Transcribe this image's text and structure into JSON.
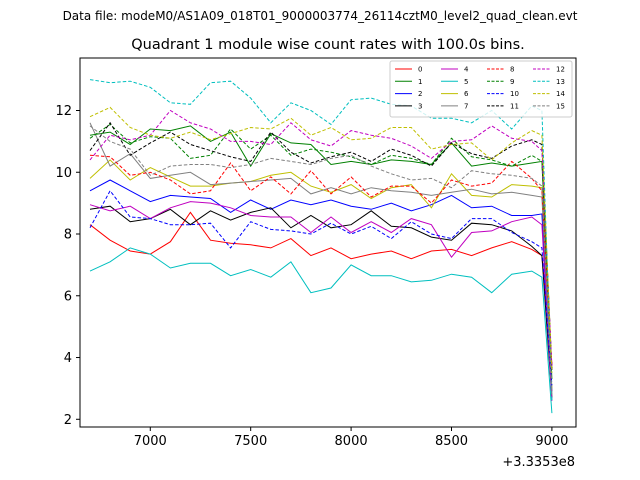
{
  "suptitle": "Data file: modeM0/AS1A09_018T01_9000003774_26114cztM0_level2_quad_clean.evt",
  "chart_data": {
    "type": "line",
    "title": "Quadrant 1 module wise count rates with 100.0s bins.",
    "xlabel": "",
    "ylabel": "",
    "x_offset_text": "+3.3353e8",
    "xlim": [
      6650,
      9120
    ],
    "ylim": [
      1.75,
      13.7
    ],
    "xticks": [
      7000,
      7500,
      8000,
      8500,
      9000
    ],
    "yticks": [
      2,
      4,
      6,
      8,
      10,
      12
    ],
    "legend_position": "top-right",
    "x": [
      6700,
      6800,
      6900,
      7000,
      7100,
      7200,
      7300,
      7400,
      7500,
      7600,
      7700,
      7800,
      7900,
      8000,
      8100,
      8200,
      8300,
      8400,
      8500,
      8600,
      8700,
      8800,
      8900,
      8950,
      9000
    ],
    "series": [
      {
        "name": "0",
        "color": "#ff0000",
        "dash": "solid",
        "values": [
          8.3,
          7.8,
          7.45,
          7.35,
          7.75,
          8.7,
          7.8,
          7.7,
          7.65,
          7.55,
          7.85,
          7.3,
          7.55,
          7.2,
          7.35,
          7.45,
          7.2,
          7.45,
          7.5,
          7.3,
          7.55,
          7.75,
          7.5,
          7.3,
          3.8
        ]
      },
      {
        "name": "1",
        "color": "#008000",
        "dash": "solid",
        "values": [
          11.2,
          11.3,
          10.9,
          11.4,
          11.35,
          11.5,
          11.0,
          11.3,
          10.2,
          11.25,
          10.95,
          10.9,
          10.25,
          10.35,
          10.25,
          10.4,
          10.35,
          10.25,
          10.95,
          10.2,
          10.3,
          10.2,
          10.3,
          10.35,
          3.3
        ]
      },
      {
        "name": "2",
        "color": "#0000ff",
        "dash": "solid",
        "values": [
          9.4,
          9.75,
          9.4,
          9.05,
          9.25,
          9.2,
          9.15,
          8.7,
          9.1,
          8.8,
          9.1,
          8.95,
          9.1,
          8.9,
          8.8,
          9.0,
          8.75,
          8.95,
          9.25,
          8.85,
          8.9,
          8.6,
          8.6,
          8.65,
          2.9
        ]
      },
      {
        "name": "3",
        "color": "#000000",
        "dash": "solid",
        "values": [
          8.8,
          8.9,
          8.4,
          8.5,
          8.8,
          8.3,
          8.75,
          8.45,
          8.7,
          8.85,
          8.2,
          8.6,
          8.2,
          8.3,
          8.75,
          8.25,
          8.2,
          7.9,
          7.8,
          8.35,
          8.3,
          8.1,
          7.6,
          7.3,
          2.7
        ]
      },
      {
        "name": "4",
        "color": "#c000c0",
        "dash": "solid",
        "values": [
          8.95,
          8.75,
          8.9,
          8.5,
          8.85,
          9.05,
          9.0,
          8.85,
          8.6,
          8.55,
          8.55,
          8.05,
          8.55,
          8.05,
          8.4,
          8.05,
          8.5,
          8.3,
          7.25,
          8.05,
          8.1,
          8.4,
          8.55,
          8.3,
          2.6
        ]
      },
      {
        "name": "5",
        "color": "#00bfbf",
        "dash": "solid",
        "values": [
          6.8,
          7.1,
          7.55,
          7.35,
          6.9,
          7.05,
          7.05,
          6.65,
          6.85,
          6.6,
          7.1,
          6.1,
          6.25,
          7.0,
          6.65,
          6.65,
          6.45,
          6.5,
          6.7,
          6.6,
          6.1,
          6.7,
          6.8,
          6.6,
          2.2
        ]
      },
      {
        "name": "6",
        "color": "#bfbf00",
        "dash": "solid",
        "values": [
          9.8,
          10.4,
          9.75,
          10.15,
          9.85,
          9.55,
          9.55,
          9.65,
          9.7,
          9.9,
          10.0,
          9.55,
          9.35,
          9.6,
          9.15,
          9.5,
          9.6,
          8.85,
          9.95,
          9.25,
          9.2,
          9.6,
          9.55,
          9.5,
          3.0
        ]
      },
      {
        "name": "7",
        "color": "#808080",
        "dash": "solid",
        "values": [
          11.6,
          10.2,
          10.6,
          9.8,
          9.9,
          10.0,
          9.6,
          9.65,
          9.7,
          9.75,
          9.8,
          9.3,
          9.5,
          9.3,
          9.5,
          9.4,
          9.35,
          9.25,
          9.35,
          9.45,
          9.3,
          9.35,
          9.25,
          9.2,
          2.9
        ]
      },
      {
        "name": "8",
        "color": "#ff0000",
        "dash": "dashed",
        "values": [
          10.55,
          10.5,
          9.9,
          10.0,
          9.75,
          9.3,
          9.4,
          10.3,
          9.4,
          9.85,
          9.3,
          10.05,
          9.3,
          9.85,
          9.2,
          9.55,
          9.55,
          9.0,
          9.75,
          9.55,
          9.65,
          10.35,
          9.8,
          9.4,
          3.7
        ]
      },
      {
        "name": "9",
        "color": "#008000",
        "dash": "dashed",
        "values": [
          11.1,
          11.55,
          10.95,
          11.15,
          11.1,
          10.45,
          10.55,
          11.4,
          10.75,
          11.2,
          10.55,
          10.75,
          10.65,
          10.5,
          10.25,
          10.55,
          10.45,
          10.25,
          11.1,
          10.5,
          10.4,
          10.2,
          10.55,
          10.35,
          3.6
        ]
      },
      {
        "name": "10",
        "color": "#0000ff",
        "dash": "dashed",
        "values": [
          8.2,
          9.4,
          8.55,
          8.5,
          8.3,
          8.3,
          8.35,
          7.55,
          8.4,
          8.15,
          8.1,
          8.0,
          8.35,
          8.0,
          8.25,
          7.85,
          8.4,
          8.0,
          7.85,
          8.5,
          8.5,
          8.05,
          7.75,
          7.55,
          3.1
        ]
      },
      {
        "name": "11",
        "color": "#000000",
        "dash": "dashed",
        "values": [
          10.7,
          11.6,
          10.55,
          10.95,
          11.3,
          10.9,
          10.7,
          10.5,
          10.35,
          11.3,
          10.65,
          10.3,
          10.5,
          10.65,
          10.35,
          10.75,
          10.55,
          10.2,
          10.95,
          10.6,
          10.45,
          10.85,
          11.05,
          10.9,
          3.6
        ]
      },
      {
        "name": "12",
        "color": "#c000c0",
        "dash": "dashed",
        "values": [
          10.4,
          11.2,
          11.05,
          11.2,
          12.0,
          11.6,
          11.4,
          11.0,
          11.0,
          10.9,
          11.6,
          11.05,
          10.85,
          11.35,
          11.2,
          11.1,
          10.85,
          10.45,
          11.0,
          11.05,
          11.5,
          11.1,
          11.0,
          10.7,
          3.7
        ]
      },
      {
        "name": "13",
        "color": "#00bfbf",
        "dash": "dashed",
        "values": [
          13.0,
          12.9,
          12.95,
          12.75,
          12.25,
          12.2,
          12.9,
          12.95,
          12.4,
          11.6,
          12.25,
          12.0,
          11.55,
          12.35,
          12.4,
          12.2,
          12.15,
          11.75,
          11.75,
          11.6,
          12.0,
          11.4,
          12.15,
          12.0,
          2.6
        ]
      },
      {
        "name": "14",
        "color": "#bfbf00",
        "dash": "dashed",
        "values": [
          11.8,
          12.1,
          11.45,
          11.2,
          11.1,
          11.3,
          11.05,
          11.25,
          11.45,
          11.4,
          11.75,
          11.2,
          11.45,
          11.05,
          11.1,
          11.45,
          11.45,
          10.75,
          10.9,
          10.95,
          10.4,
          10.95,
          11.35,
          11.2,
          3.5
        ]
      },
      {
        "name": "15",
        "color": "#808080",
        "dash": "dashed",
        "values": [
          11.5,
          11.0,
          10.75,
          9.9,
          10.2,
          10.25,
          10.25,
          10.15,
          10.25,
          10.45,
          10.35,
          10.25,
          10.45,
          10.55,
          10.2,
          9.95,
          9.75,
          9.8,
          9.5,
          10.05,
          9.95,
          9.9,
          9.8,
          9.55,
          2.8
        ]
      }
    ]
  }
}
